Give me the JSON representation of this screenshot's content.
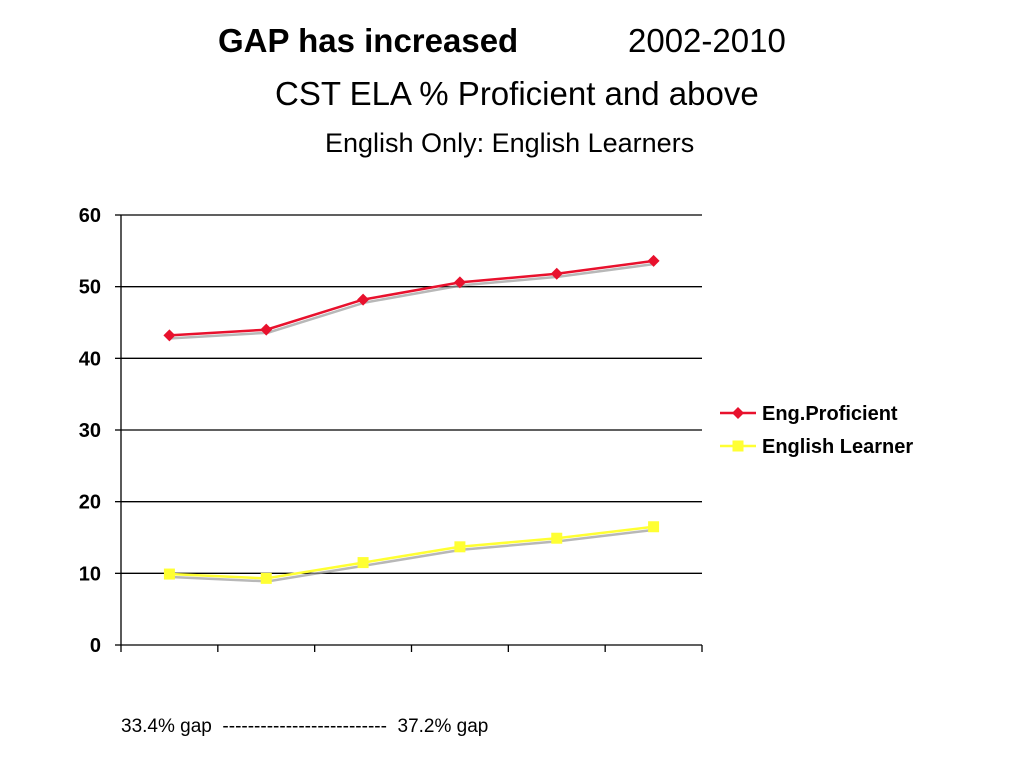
{
  "slide": {
    "title_bold": "GAP has increased",
    "title_years": "2002-2010",
    "subtitle": "CST ELA % Proficient and above",
    "subsubtitle": "English Only: English Learners",
    "gap_start": "33.4% gap",
    "gap_dashes": "--------------------------",
    "gap_end": "37.2% gap"
  },
  "chart_data": {
    "type": "line",
    "title": "",
    "xlabel": "",
    "ylabel": "",
    "ylim": [
      0,
      60
    ],
    "yticks": [
      "0",
      "10",
      "20",
      "30",
      "40",
      "50",
      "60"
    ],
    "grid": "horizontal",
    "legend_position": "right",
    "series": [
      {
        "name": "Eng.Proficient",
        "color": "#e8112d",
        "marker": "diamond",
        "values": [
          43.2,
          44.0,
          48.2,
          50.6,
          51.8,
          53.6
        ]
      },
      {
        "name": "English Learner",
        "color": "#ffff33",
        "marker": "square",
        "values": [
          9.9,
          9.3,
          11.5,
          13.7,
          14.9,
          16.5
        ]
      }
    ]
  }
}
